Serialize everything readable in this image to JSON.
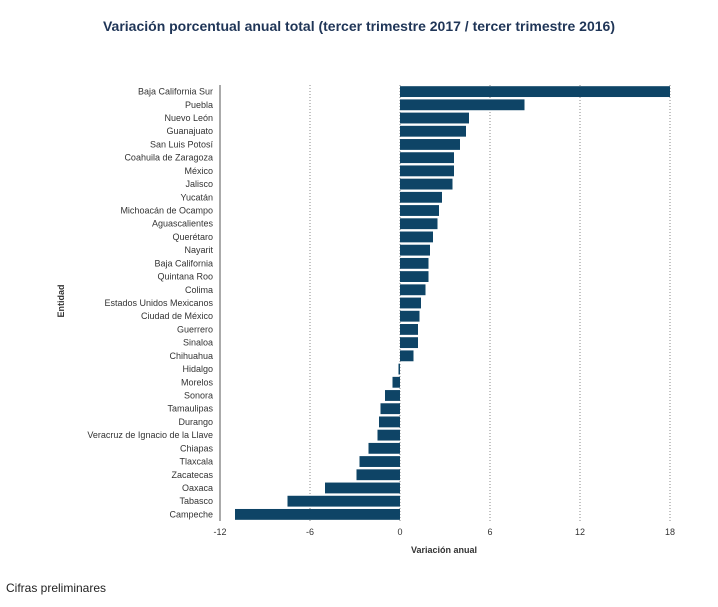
{
  "chart_data": {
    "type": "bar",
    "orientation": "horizontal",
    "title": "Variación porcentual anual total (tercer trimestre 2017 / tercer trimestre 2016)",
    "xlabel": "Variación anual",
    "ylabel": "Entidad",
    "xlim": [
      -12,
      18
    ],
    "xticks": [
      -12,
      -6,
      0,
      6,
      12,
      18
    ],
    "grid": "vertical dotted",
    "bar_color": "#0e4466",
    "categories": [
      "Baja California Sur",
      "Puebla",
      "Nuevo León",
      "Guanajuato",
      "San Luis Potosí",
      "Coahuila de Zaragoza",
      "México",
      "Jalisco",
      "Yucatán",
      "Michoacán de Ocampo",
      "Aguascalientes",
      "Querétaro",
      "Nayarit",
      "Baja California",
      "Quintana Roo",
      "Colima",
      "Estados Unidos Mexicanos",
      "Ciudad de México",
      "Guerrero",
      "Sinaloa",
      "Chihuahua",
      "Hidalgo",
      "Morelos",
      "Sonora",
      "Tamaulipas",
      "Durango",
      "Veracruz de Ignacio de la Llave",
      "Chiapas",
      "Tlaxcala",
      "Zacatecas",
      "Oaxaca",
      "Tabasco",
      "Campeche"
    ],
    "values": [
      18.0,
      8.3,
      4.6,
      4.4,
      4.0,
      3.6,
      3.6,
      3.5,
      2.8,
      2.6,
      2.5,
      2.2,
      2.0,
      1.9,
      1.9,
      1.7,
      1.4,
      1.3,
      1.2,
      1.2,
      0.9,
      -0.1,
      -0.5,
      -1.0,
      -1.3,
      -1.4,
      -1.5,
      -2.1,
      -2.7,
      -2.9,
      -5.0,
      -7.5,
      -11.0
    ]
  },
  "footnote": "Cifras preliminares"
}
